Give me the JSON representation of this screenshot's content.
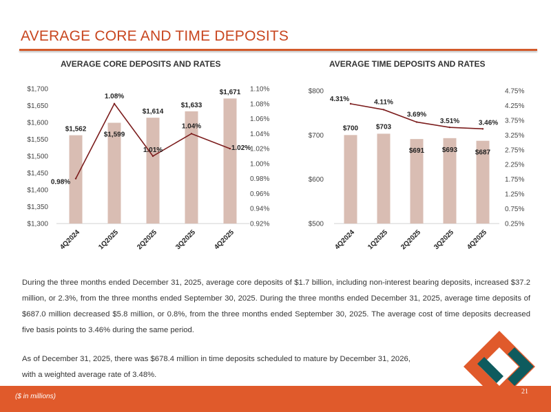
{
  "page": {
    "title": "AVERAGE CORE AND TIME DEPOSITS",
    "footnote": "($ in millions)",
    "page_number": "21",
    "paragraph_1": "During the three months ended December 31, 2025, average core deposits of $1.7 billion, including non-interest bearing deposits, increased $37.2 million, or 2.3%, from the three months ended September 30, 2025. During the three months ended December 31, 2025, average time deposits of $687.0 million decreased $5.8 million, or 0.8%, from the three months ended September 30, 2025. The average cost of time deposits decreased five basis points to 3.46% during the same period.",
    "paragraph_2_line_1": "As of December 31, 2025, there was $678.4 million in time deposits scheduled to mature by December 31, 2026,",
    "paragraph_2_line_2": "with a weighted average rate of 3.48%."
  },
  "colors": {
    "accent": "#e05a2b",
    "title": "#c8461f",
    "bar": "#d9bdb3",
    "line": "#7b1c1c",
    "logo_orange": "#e05a2b",
    "logo_teal": "#0e5b5e"
  },
  "chart_data": [
    {
      "type": "bar",
      "title": "AVERAGE CORE DEPOSITS AND RATES",
      "categories": [
        "4Q2024",
        "1Q2025",
        "2Q2025",
        "3Q2025",
        "4Q2025"
      ],
      "bar_values": [
        1562,
        1599,
        1614,
        1633,
        1671
      ],
      "bar_labels": [
        "$1,562",
        "$1,599",
        "$1,614",
        "$1,633",
        "$1,671"
      ],
      "line_values": [
        0.98,
        1.08,
        1.01,
        1.04,
        1.02
      ],
      "line_labels": [
        "0.98%",
        "1.08%",
        "1.01%",
        "1.04%",
        "1.02%"
      ],
      "ylim_left": [
        1300,
        1700
      ],
      "ylim_right": [
        0.92,
        1.1
      ],
      "yticks_left": [
        "$1,300",
        "$1,350",
        "$1,400",
        "$1,450",
        "$1,500",
        "$1,550",
        "$1,600",
        "$1,650",
        "$1,700"
      ],
      "yticks_right": [
        "0.92%",
        "0.94%",
        "0.96%",
        "0.98%",
        "1.00%",
        "1.02%",
        "1.04%",
        "1.06%",
        "1.08%",
        "1.10%"
      ],
      "grid": false
    },
    {
      "type": "bar",
      "title": "AVERAGE TIME DEPOSITS AND RATES",
      "categories": [
        "4Q2024",
        "1Q2025",
        "2Q2025",
        "3Q2025",
        "4Q2025"
      ],
      "bar_values": [
        700,
        703,
        691,
        693,
        687
      ],
      "bar_labels": [
        "$700",
        "$703",
        "$691",
        "$693",
        "$687"
      ],
      "line_values": [
        4.31,
        4.11,
        3.69,
        3.51,
        3.46
      ],
      "line_labels": [
        "4.31%",
        "4.11%",
        "3.69%",
        "3.51%",
        "3.46%"
      ],
      "ylim_left": [
        500,
        800
      ],
      "ylim_right": [
        0.25,
        4.75
      ],
      "yticks_left": [
        "$500",
        "$600",
        "$700",
        "$800"
      ],
      "yticks_right": [
        "0.25%",
        "0.75%",
        "1.25%",
        "1.75%",
        "2.25%",
        "2.75%",
        "3.25%",
        "3.75%",
        "4.25%",
        "4.75%"
      ],
      "grid": false
    }
  ]
}
